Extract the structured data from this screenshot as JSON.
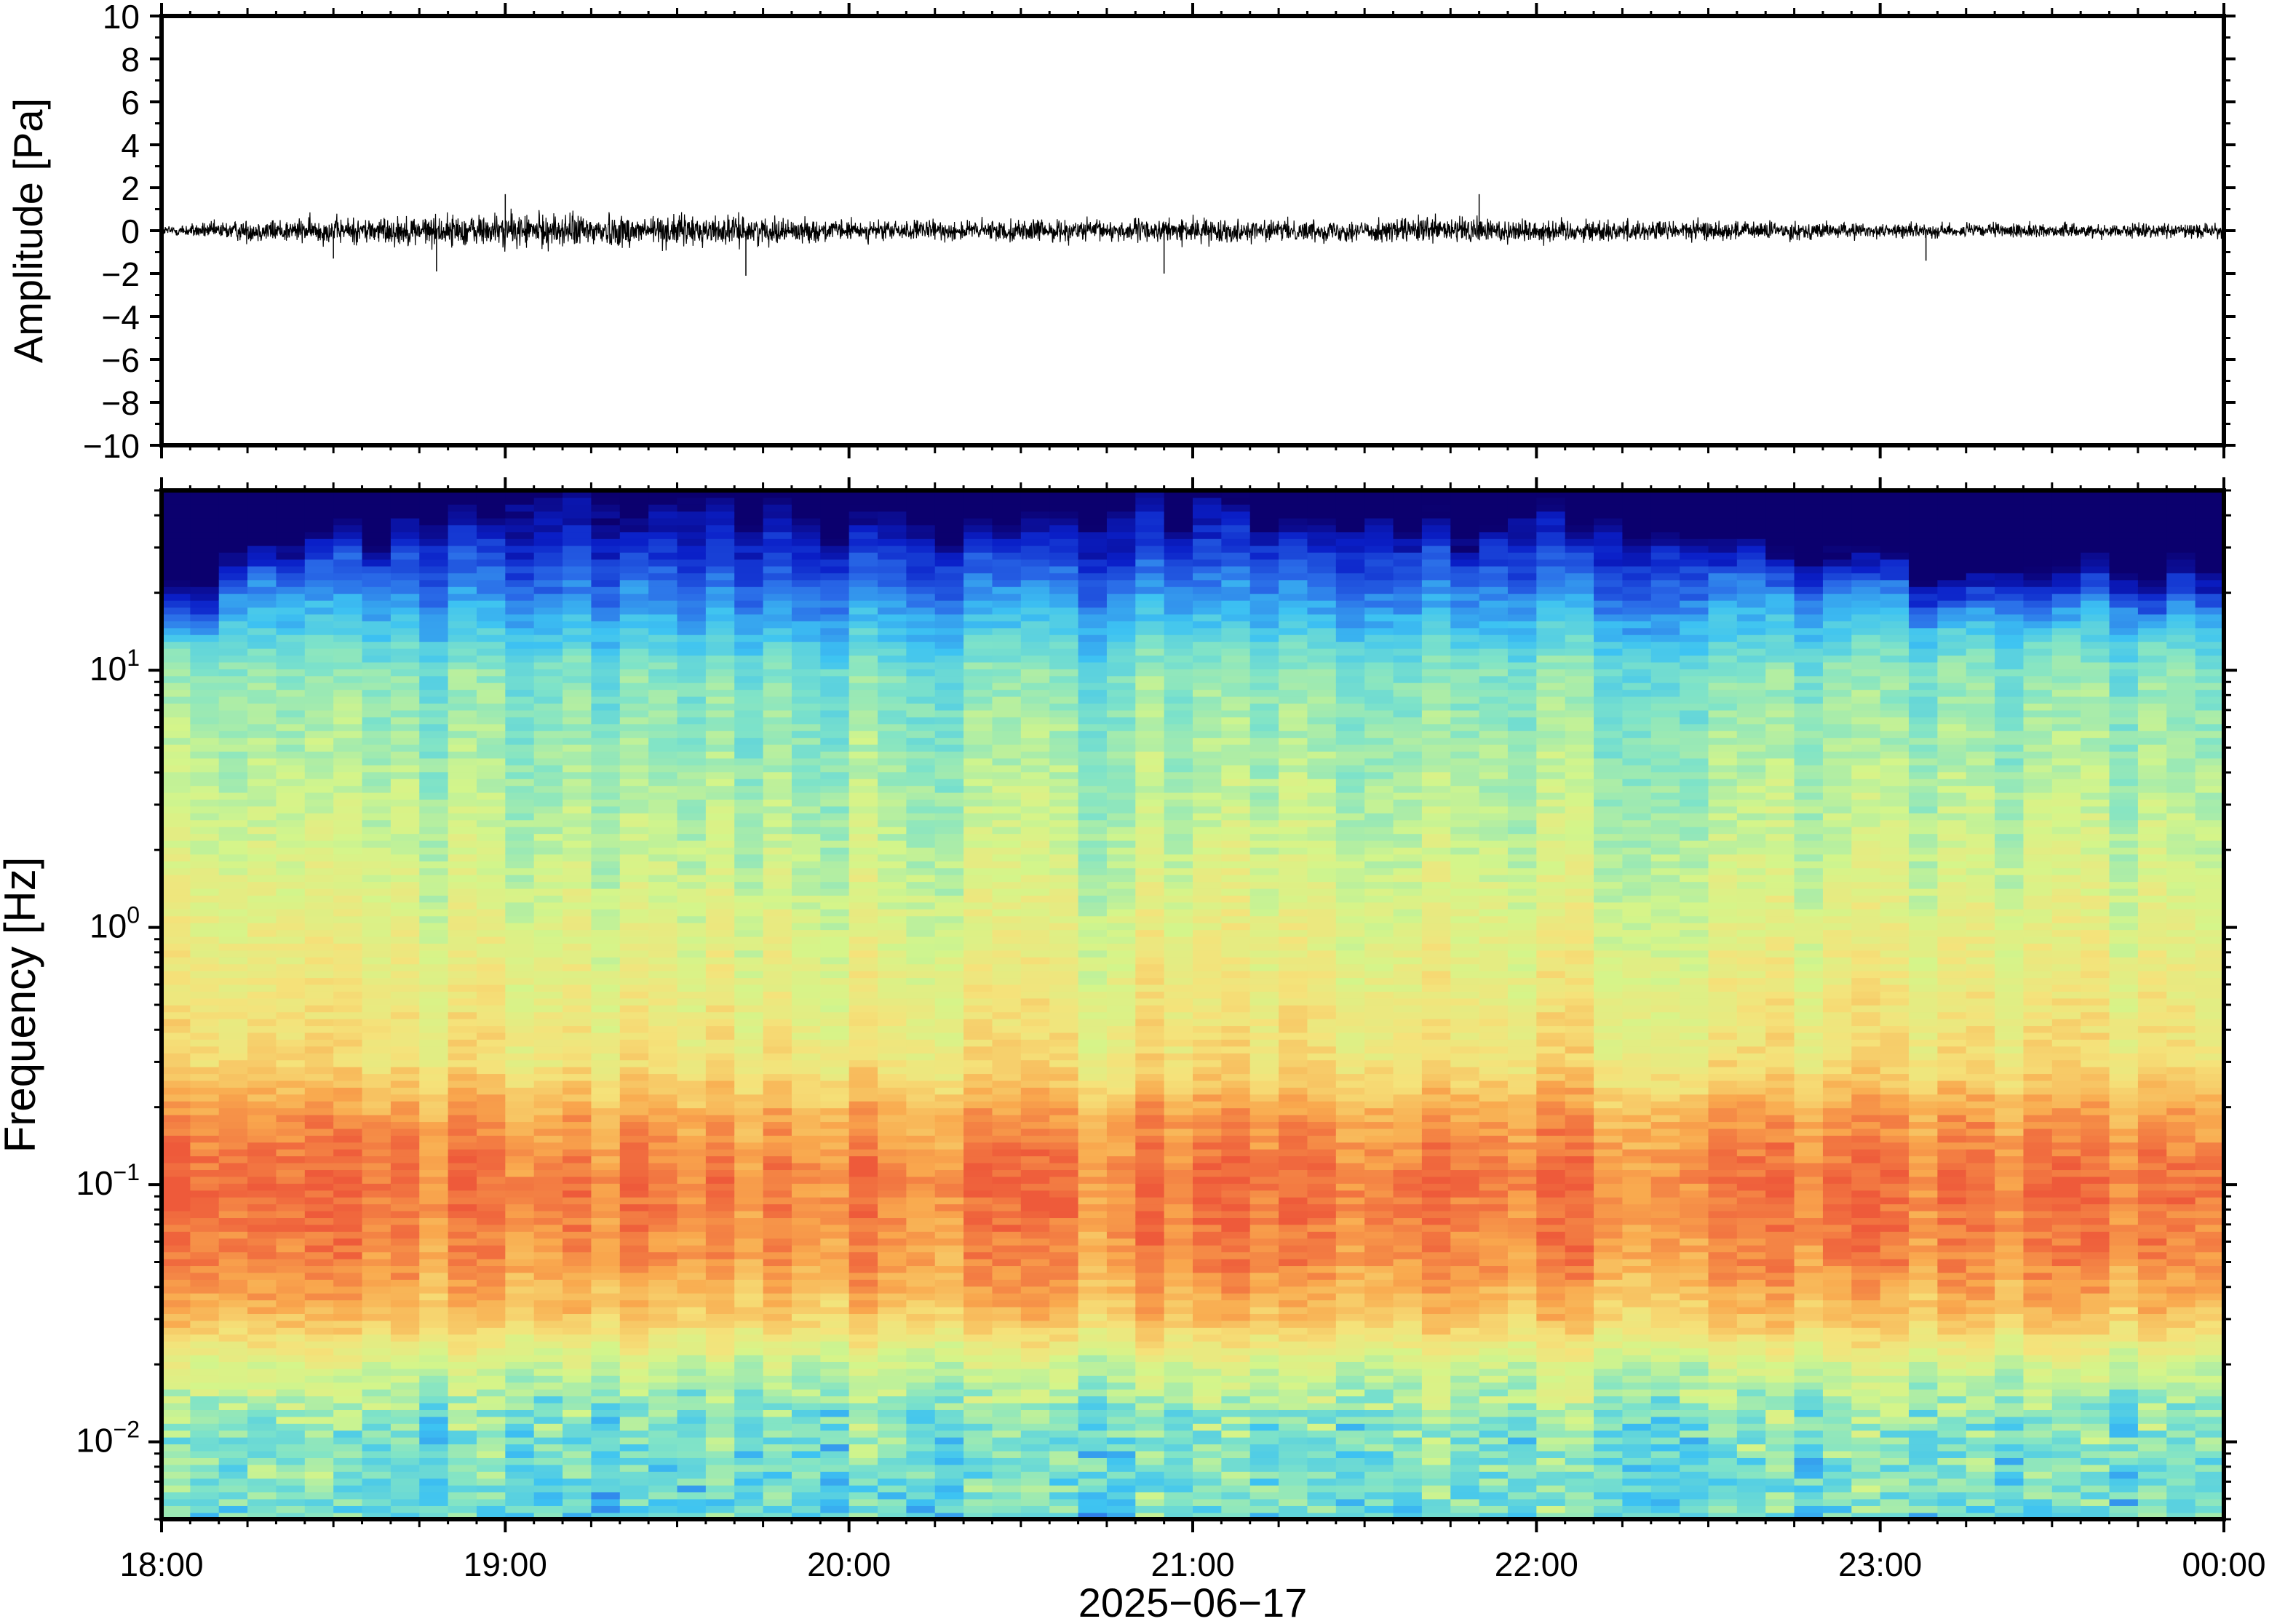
{
  "chart_data": [
    {
      "type": "line",
      "panel": "waveform",
      "ylabel": "Amplitude [Pa]",
      "ylim": [
        -10,
        10
      ],
      "yticks": [
        "10",
        "8",
        "6",
        "4",
        "2",
        "0",
        "−2",
        "−4",
        "−6",
        "−8",
        "−10"
      ],
      "ytick_values": [
        10,
        8,
        6,
        4,
        2,
        0,
        -2,
        -4,
        -6,
        -8,
        -10
      ],
      "x_range": [
        "18:00",
        "00:00"
      ],
      "envelope": {
        "x_hours": [
          18.0,
          18.25,
          18.5,
          18.75,
          19.0,
          19.25,
          19.5,
          19.75,
          20.0,
          20.25,
          20.5,
          20.75,
          21.0,
          21.25,
          21.5,
          21.75,
          22.0,
          22.25,
          22.5,
          22.75,
          23.0,
          23.25,
          23.5,
          23.75,
          24.0
        ],
        "half_amplitude_pa": [
          0.25,
          0.55,
          0.65,
          0.75,
          0.85,
          0.85,
          0.8,
          0.65,
          0.5,
          0.5,
          0.55,
          0.55,
          0.6,
          0.5,
          0.55,
          0.7,
          0.6,
          0.55,
          0.5,
          0.45,
          0.35,
          0.35,
          0.35,
          0.35,
          0.35
        ]
      },
      "spikes": [
        {
          "x": "18:48",
          "y": -1.9
        },
        {
          "x": "19:00",
          "y": 1.7
        },
        {
          "x": "19:42",
          "y": -2.1
        },
        {
          "x": "20:55",
          "y": -2.0
        },
        {
          "x": "21:50",
          "y": 1.7
        },
        {
          "x": "18:30",
          "y": -1.3
        },
        {
          "x": "23:08",
          "y": -1.4
        }
      ]
    },
    {
      "type": "heatmap",
      "panel": "spectrogram",
      "ylabel": "Frequency [Hz]",
      "yscale": "log",
      "ylim": [
        0.005,
        50
      ],
      "yticks": [
        {
          "base": "10",
          "exp": "1",
          "value": 10
        },
        {
          "base": "10",
          "exp": "0",
          "value": 1
        },
        {
          "base": "10",
          "exp": "−1",
          "value": 0.1
        },
        {
          "base": "10",
          "exp": "−2",
          "value": 0.01
        }
      ],
      "xlabel": "2025−06−17",
      "xticks": [
        "18:00",
        "19:00",
        "20:00",
        "21:00",
        "22:00",
        "23:00",
        "00:00"
      ],
      "time_columns": 72,
      "colormap": "jet",
      "colorscale_stops": [
        "#0b006e",
        "#0a1fc8",
        "#2a6be8",
        "#3dc3f2",
        "#7fe3c8",
        "#d4f58a",
        "#f5e27a",
        "#f9a94e",
        "#ee5a3a"
      ],
      "spectrum_profile": {
        "freq_hz": [
          0.005,
          0.012,
          0.02,
          0.03,
          0.05,
          0.1,
          0.18,
          0.3,
          1,
          3,
          10,
          20,
          35,
          50
        ],
        "relative_level": [
          0.45,
          0.5,
          0.62,
          0.8,
          0.9,
          0.95,
          0.88,
          0.74,
          0.66,
          0.58,
          0.5,
          0.28,
          0.1,
          0.04
        ]
      },
      "upper_band_cutoff_hz": {
        "x_hours": [
          18.0,
          18.5,
          19.0,
          19.5,
          20.0,
          20.5,
          21.0,
          21.5,
          22.0,
          22.5,
          23.0,
          23.5,
          24.0
        ],
        "hz": [
          10,
          25,
          40,
          38,
          30,
          32,
          36,
          28,
          30,
          26,
          18,
          16,
          15
        ]
      }
    }
  ]
}
